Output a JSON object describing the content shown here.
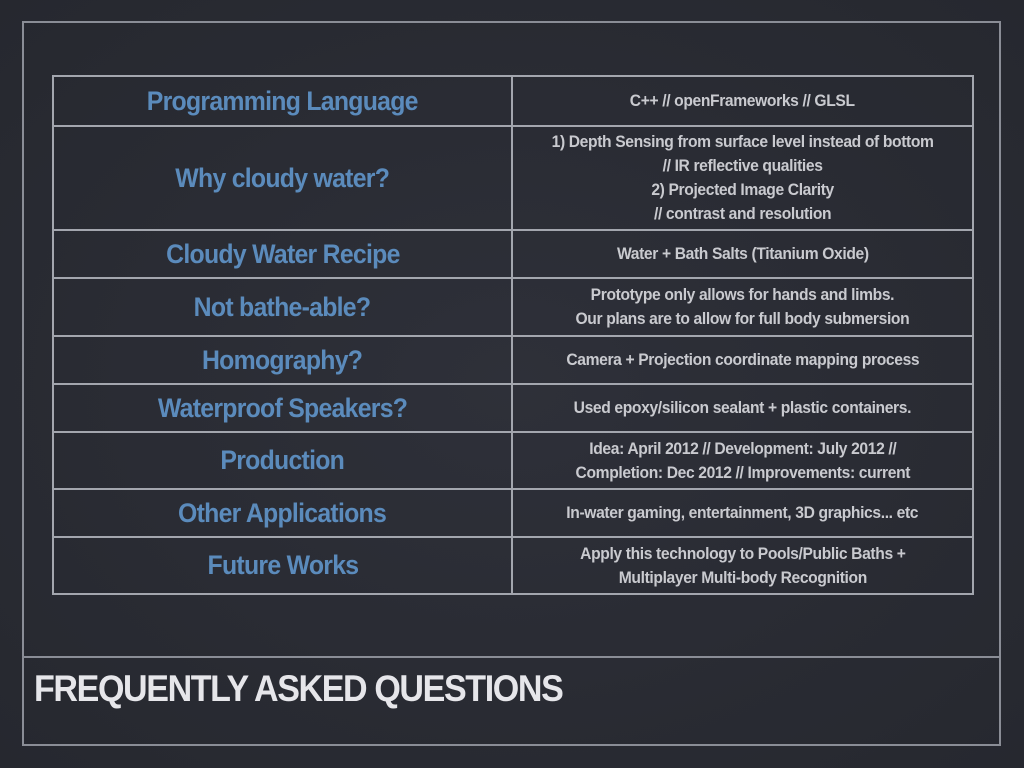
{
  "slide": {
    "title": "FREQUENTLY ASKED QUESTIONS"
  },
  "faq": [
    {
      "question": "Programming Language",
      "answer": "C++ // openFrameworks // GLSL"
    },
    {
      "question": "Why cloudy water?",
      "answer": "1) Depth Sensing from surface level instead of bottom\n// IR reflective qualities\n2) Projected Image Clarity\n// contrast and resolution"
    },
    {
      "question": "Cloudy Water Recipe",
      "answer": "Water + Bath Salts (Titanium Oxide)"
    },
    {
      "question": "Not bathe-able?",
      "answer": "Prototype only allows for hands and limbs.\nOur plans are to allow for full body submersion"
    },
    {
      "question": "Homography?",
      "answer": "Camera + Projection coordinate mapping process"
    },
    {
      "question": "Waterproof Speakers?",
      "answer": "Used epoxy/silicon sealant + plastic containers."
    },
    {
      "question": "Production",
      "answer": "Idea: April 2012 // Development: July 2012 //\nCompletion: Dec 2012 // Improvements: current"
    },
    {
      "question": "Other Applications",
      "answer": "In-water gaming, entertainment, 3D graphics... etc"
    },
    {
      "question": "Future Works",
      "answer": "Apply this technology to Pools/Public Baths +\nMultiplayer Multi-body Recognition"
    }
  ],
  "colors": {
    "background": "#2a2c36",
    "question_text": "#5b8bbc",
    "answer_text": "#c9cacf",
    "title_text": "#e6e6ea",
    "borders": "#a3a6ae"
  }
}
